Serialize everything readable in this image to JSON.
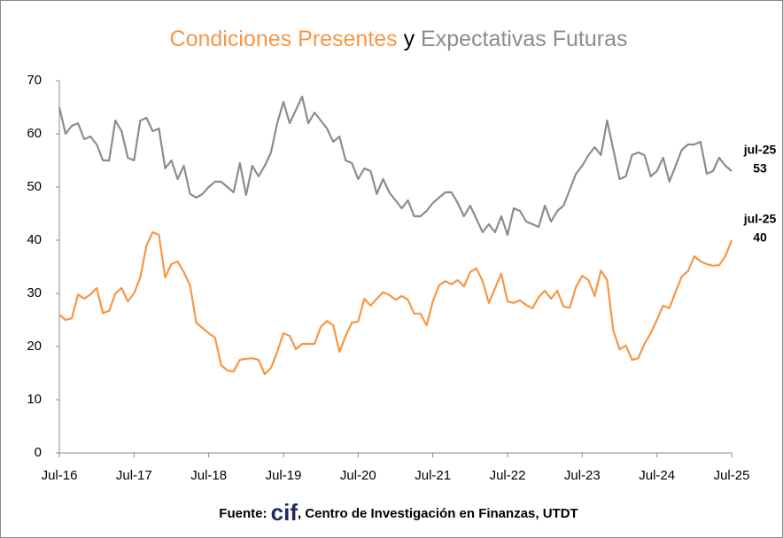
{
  "chart_data": {
    "type": "line",
    "title_connector": "y",
    "categories": [
      "Jul-16",
      null,
      null,
      null,
      null,
      null,
      null,
      null,
      null,
      null,
      null,
      null,
      "Jul-17",
      null,
      null,
      null,
      null,
      null,
      null,
      null,
      null,
      null,
      null,
      null,
      "Jul-18",
      null,
      null,
      null,
      null,
      null,
      null,
      null,
      null,
      null,
      null,
      null,
      "Jul-19",
      null,
      null,
      null,
      null,
      null,
      null,
      null,
      null,
      null,
      null,
      null,
      "Jul-20",
      null,
      null,
      null,
      null,
      null,
      null,
      null,
      null,
      null,
      null,
      null,
      "Jul-21",
      null,
      null,
      null,
      null,
      null,
      null,
      null,
      null,
      null,
      null,
      null,
      "Jul-22",
      null,
      null,
      null,
      null,
      null,
      null,
      null,
      null,
      null,
      null,
      null,
      "Jul-23",
      null,
      null,
      null,
      null,
      null,
      null,
      null,
      null,
      null,
      null,
      null,
      "Jul-24",
      null,
      null,
      null,
      null,
      null,
      null,
      null,
      null,
      null,
      null,
      null,
      "Jul-25"
    ],
    "series": [
      {
        "name": "Condiciones Presentes",
        "color": "#f79646",
        "values": [
          26,
          25,
          25.3,
          29.8,
          29,
          29.8,
          31,
          26.3,
          26.7,
          30,
          31,
          28.5,
          30,
          33,
          39,
          41.5,
          41,
          33,
          35.5,
          36,
          34,
          31.5,
          24.5,
          23.5,
          22.5,
          21.7,
          16.5,
          15.5,
          15.3,
          17.5,
          17.7,
          17.8,
          17.5,
          14.8,
          16,
          19,
          22.5,
          22,
          19.5,
          20.5,
          20.5,
          20.5,
          23.7,
          24.8,
          24,
          19,
          22,
          24.5,
          24.7,
          29,
          27.7,
          29,
          30.2,
          29.7,
          28.8,
          29.5,
          28.8,
          26.2,
          26.2,
          24,
          28.5,
          31.5,
          32.3,
          31.7,
          32.5,
          31.3,
          34,
          34.7,
          32.3,
          28.2,
          31,
          33.7,
          28.5,
          28.2,
          28.7,
          27.8,
          27.2,
          29.3,
          30.5,
          29,
          30.5,
          27.5,
          27.3,
          31.2,
          33.3,
          32.5,
          29.5,
          34.3,
          32.5,
          23,
          19.5,
          20.2,
          17.5,
          17.8,
          20.5,
          22.5,
          25,
          27.7,
          27.2,
          30.3,
          33.2,
          34.2,
          37,
          36,
          35.5,
          35.2,
          35.3,
          37,
          40
        ]
      },
      {
        "name": "Expectativas Futuras",
        "color": "#8c8c8c",
        "values": [
          65,
          60,
          61.5,
          62,
          59,
          59.5,
          58,
          55,
          55,
          62.5,
          60.5,
          55.5,
          55,
          62.5,
          63,
          60.5,
          61,
          53.5,
          55,
          51.5,
          54,
          48.7,
          48,
          48.7,
          50,
          51,
          51,
          50,
          49,
          54.5,
          48.5,
          54,
          52,
          54,
          56.5,
          62,
          66,
          62,
          64.5,
          67,
          62,
          64,
          62.5,
          61,
          58.5,
          59.5,
          55,
          54.5,
          51.5,
          53.5,
          53,
          48.7,
          51.5,
          49,
          47.5,
          46,
          47.5,
          44.5,
          44.5,
          45.5,
          47,
          48,
          49,
          49,
          47,
          44.5,
          46.5,
          44,
          41.5,
          43,
          41.5,
          44.5,
          41,
          46,
          45.5,
          43.5,
          43,
          42.5,
          46.5,
          43.5,
          45.5,
          46.5,
          49.5,
          52.5,
          54,
          56,
          57.5,
          56,
          62.5,
          57,
          51.5,
          52,
          56,
          56.5,
          56,
          52,
          53,
          55.5,
          51,
          54,
          57,
          58,
          58,
          58.5,
          52.5,
          53,
          55.5,
          54,
          53
        ]
      }
    ],
    "annotations": [
      {
        "text": "jul-25",
        "series": 1
      },
      {
        "text": "jul-25",
        "series": 0
      }
    ],
    "ylim": [
      0,
      70
    ],
    "yticks": [
      0,
      10,
      20,
      30,
      40,
      50,
      60,
      70
    ],
    "grid": false,
    "source": {
      "prefix": "Fuente:",
      "logo": "cif",
      "text": ", Centro de Investigación en Finanzas, UTDT"
    }
  }
}
